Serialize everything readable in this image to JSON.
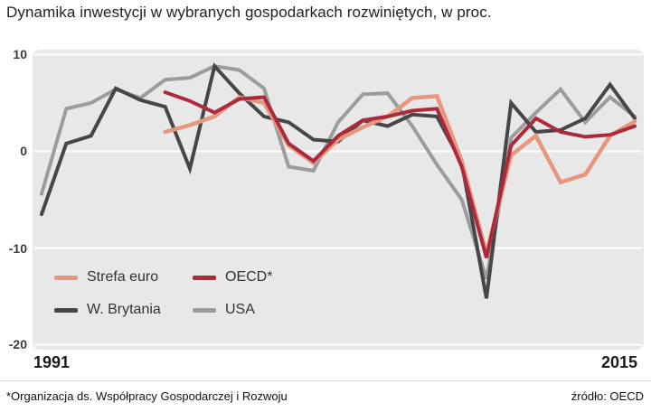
{
  "title": "Dynamika inwestycji w wybranych gospodarkach rozwiniętych, w proc.",
  "axes": {
    "y_ticks": [
      10,
      0,
      -10,
      -20
    ],
    "x_start_label": "1991",
    "x_end_label": "2015"
  },
  "footer": {
    "footnote": "*Organizacja ds. Współpracy Gospodarczej i Rozwoju",
    "source": "źródło: OECD"
  },
  "chart_data": {
    "type": "line",
    "x": [
      1991,
      1992,
      1993,
      1994,
      1995,
      1996,
      1997,
      1998,
      1999,
      2000,
      2001,
      2002,
      2003,
      2004,
      2005,
      2006,
      2007,
      2008,
      2009,
      2010,
      2011,
      2012,
      2013,
      2014,
      2015
    ],
    "ylim": [
      -20.5,
      10.5
    ],
    "grid": true,
    "plot_bg": "#e8e8e8",
    "gridline_color": "#ffffff",
    "legend_position": "inside-bottom-left",
    "draw_order": [
      3,
      2,
      0,
      1
    ],
    "series": [
      {
        "name": "Strefa euro",
        "slug": "strefa-euro",
        "color": "#e7977f",
        "width": 4.5,
        "values": [
          null,
          null,
          null,
          null,
          null,
          2.0,
          2.7,
          3.6,
          5.6,
          5.0,
          0.6,
          -1.2,
          1.2,
          2.5,
          3.6,
          5.5,
          5.7,
          -1.0,
          -10.6,
          -0.4,
          1.6,
          -3.2,
          -2.4,
          1.6,
          3.1
        ]
      },
      {
        "name": "OECD*",
        "slug": "oecd",
        "color": "#ab2a3b",
        "width": 4,
        "values": [
          null,
          null,
          null,
          null,
          null,
          6.1,
          5.2,
          4.0,
          5.4,
          5.6,
          0.8,
          -1.0,
          1.6,
          3.2,
          3.6,
          4.2,
          4.4,
          -1.6,
          -11.0,
          0.6,
          3.4,
          2.0,
          1.5,
          1.7,
          2.6
        ]
      },
      {
        "name": "W. Brytania",
        "slug": "w-brytania",
        "color": "#464646",
        "width": 4,
        "values": [
          -6.5,
          0.8,
          1.6,
          6.5,
          5.3,
          4.6,
          -1.8,
          8.8,
          6.0,
          3.6,
          3.0,
          1.2,
          1.0,
          3.2,
          2.6,
          3.8,
          3.6,
          -1.2,
          -15.2,
          5.0,
          2.0,
          2.2,
          3.4,
          6.9,
          3.4
        ]
      },
      {
        "name": "USA",
        "slug": "usa",
        "color": "#9c9c9c",
        "width": 4,
        "values": [
          -4.4,
          4.4,
          5.0,
          6.4,
          5.5,
          7.4,
          7.6,
          8.8,
          8.4,
          6.5,
          -1.6,
          -2.0,
          3.0,
          5.9,
          6.0,
          2.6,
          -1.4,
          -5.0,
          -13.2,
          1.4,
          4.0,
          6.4,
          3.0,
          5.6,
          3.6
        ]
      }
    ]
  }
}
